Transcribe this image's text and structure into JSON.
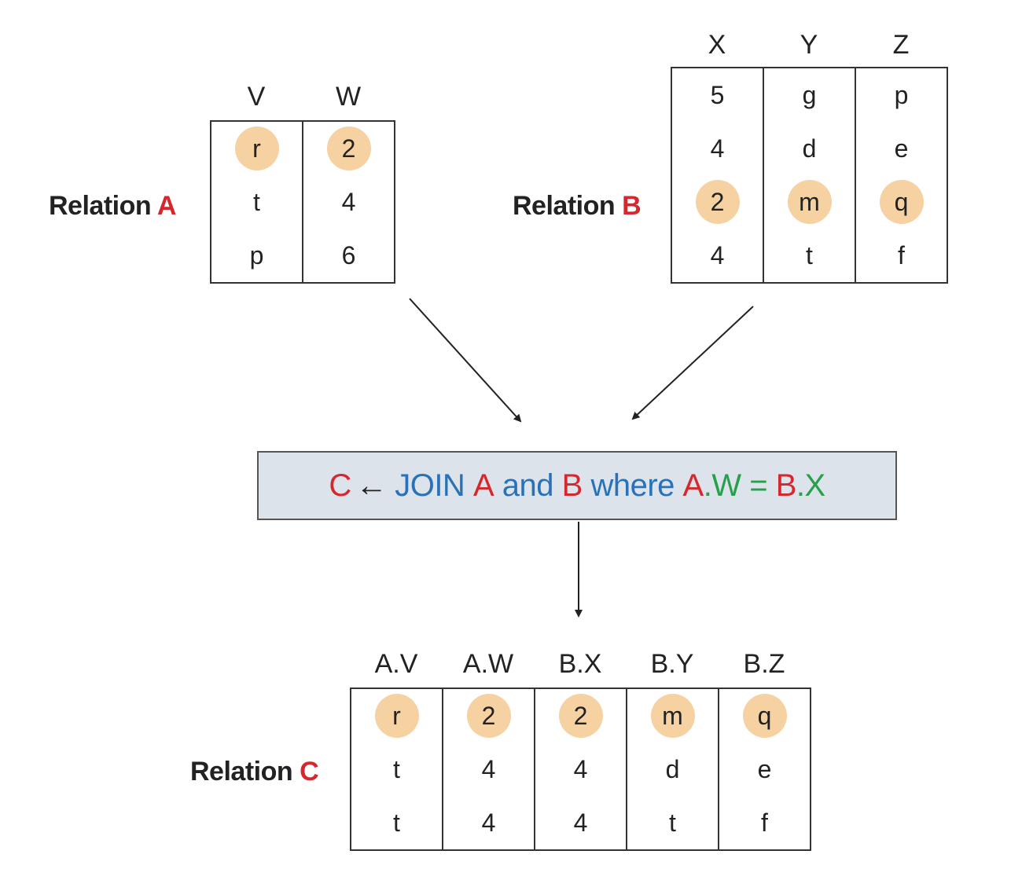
{
  "relation_a": {
    "label": "Relation",
    "letter": "A",
    "columns": [
      "V",
      "W"
    ],
    "rows": [
      [
        "r",
        "2"
      ],
      [
        "t",
        "4"
      ],
      [
        "p",
        "6"
      ]
    ],
    "highlighted_row": 0
  },
  "relation_b": {
    "label": "Relation",
    "letter": "B",
    "columns": [
      "X",
      "Y",
      "Z"
    ],
    "rows": [
      [
        "5",
        "g",
        "p"
      ],
      [
        "4",
        "d",
        "e"
      ],
      [
        "2",
        "m",
        "q"
      ],
      [
        "4",
        "t",
        "f"
      ]
    ],
    "highlighted_row": 2
  },
  "join": {
    "target": "C",
    "arrow": "←",
    "keyword": "JOIN",
    "rel1": "A",
    "and": "and",
    "rel2": "B",
    "where": "where",
    "lhs_rel": "A",
    "lhs_attr": ".W",
    "eq": "=",
    "rhs_rel": "B",
    "rhs_attr": ".X"
  },
  "relation_c": {
    "label": "Relation",
    "letter": "C",
    "columns": [
      "A.V",
      "A.W",
      "B.X",
      "B.Y",
      "B.Z"
    ],
    "rows": [
      [
        "r",
        "2",
        "2",
        "m",
        "q"
      ],
      [
        "t",
        "4",
        "4",
        "d",
        "e"
      ],
      [
        "t",
        "4",
        "4",
        "t",
        "f"
      ]
    ],
    "highlighted_row": 0
  },
  "colors": {
    "highlight": "#f6d2a3",
    "relation_letter": "#d6262e",
    "keyword": "#2a72b8",
    "attribute": "#27a04b",
    "join_box_fill": "#dde3ea"
  }
}
